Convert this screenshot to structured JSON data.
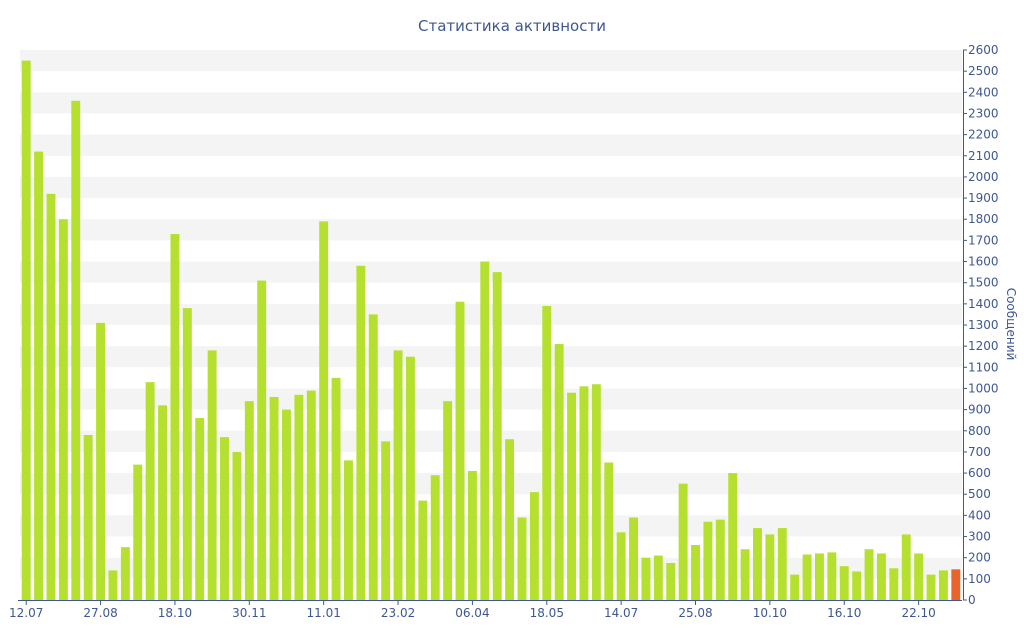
{
  "chart_data": {
    "type": "bar",
    "title": "Статистика активности",
    "xlabel": "",
    "ylabel": "Сообщений",
    "ylim": [
      0,
      2600
    ],
    "ytick_step": 100,
    "grid": "horizontal-bands",
    "colors": {
      "bar": "#b5e02f",
      "highlight": "#e8642c",
      "text": "#3f5790",
      "band": "#f4f4f4",
      "axis": "#3f5790"
    },
    "x_tick_labels": [
      {
        "index": 0,
        "label": "12.07"
      },
      {
        "index": 6,
        "label": "27.08"
      },
      {
        "index": 12,
        "label": "18.10"
      },
      {
        "index": 18,
        "label": "30.11"
      },
      {
        "index": 24,
        "label": "11.01"
      },
      {
        "index": 30,
        "label": "23.02"
      },
      {
        "index": 36,
        "label": "06.04"
      },
      {
        "index": 42,
        "label": "18.05"
      },
      {
        "index": 48,
        "label": "14.07"
      },
      {
        "index": 54,
        "label": "25.08"
      },
      {
        "index": 60,
        "label": "10.10"
      },
      {
        "index": 66,
        "label": "16.10"
      },
      {
        "index": 72,
        "label": "22.10"
      }
    ],
    "values": [
      2550,
      2120,
      1920,
      1800,
      2360,
      780,
      1310,
      140,
      250,
      640,
      1030,
      920,
      1730,
      1380,
      860,
      1180,
      770,
      700,
      940,
      1510,
      960,
      900,
      970,
      990,
      1790,
      1050,
      660,
      1580,
      1350,
      750,
      1180,
      1150,
      470,
      590,
      940,
      1410,
      610,
      1600,
      1550,
      760,
      390,
      510,
      1390,
      1210,
      980,
      1010,
      1020,
      650,
      320,
      390,
      200,
      210,
      175,
      550,
      260,
      370,
      380,
      600,
      240,
      340,
      310,
      340,
      120,
      215,
      220,
      225,
      160,
      135,
      240,
      220,
      150,
      310,
      220,
      120,
      140,
      145
    ],
    "highlight_index": 75
  }
}
